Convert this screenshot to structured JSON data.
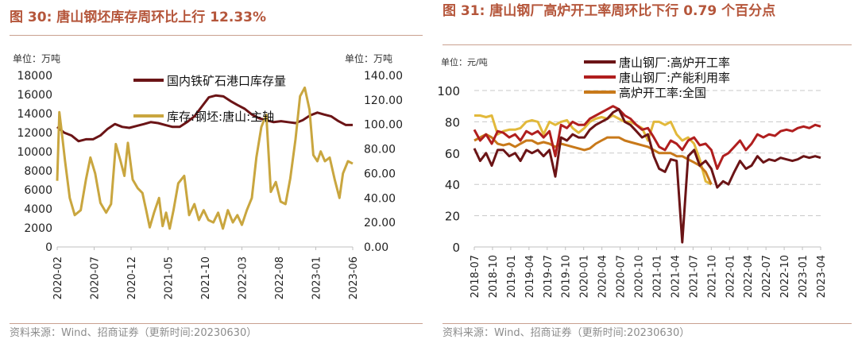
{
  "left": {
    "title": "图 30:  唐山钢坯库存周环比上行 12.33%",
    "source": "资料来源：Wind、招商证券（更新时间:20230630）",
    "chart_data": {
      "type": "line",
      "unit_left": "单位：万吨",
      "unit_right": "单位：万吨",
      "ylim_left": [
        0,
        18000
      ],
      "yticks_left": [
        "18000",
        "16000",
        "14000",
        "12000",
        "10000",
        "8000",
        "6000",
        "4000",
        "2000",
        "0"
      ],
      "ylim_right": [
        0,
        140
      ],
      "yticks_right": [
        "140.00",
        "120.00",
        "100.00",
        "80.00",
        "60.00",
        "40.00",
        "20.00",
        "0.00"
      ],
      "x_ticks": [
        "2020-02",
        "2020-07",
        "2020-12",
        "2021-05",
        "2021-10",
        "2022-03",
        "2022-08",
        "2023-01",
        "2023-06"
      ],
      "x_range": [
        "2020-02-01",
        "2023-06-30"
      ],
      "legend_placement": "top-right",
      "series": [
        {
          "name": "国内铁矿石港口库存量",
          "axis": "left",
          "color": "#6b1416",
          "dates": [
            "2020-02-01",
            "2020-03-01",
            "2020-04-01",
            "2020-05-01",
            "2020-06-01",
            "2020-07-01",
            "2020-08-01",
            "2020-09-01",
            "2020-10-01",
            "2020-11-01",
            "2020-12-01",
            "2021-01-01",
            "2021-02-01",
            "2021-03-01",
            "2021-04-01",
            "2021-05-01",
            "2021-06-01",
            "2021-07-01",
            "2021-08-01",
            "2021-09-01",
            "2021-10-01",
            "2021-11-01",
            "2021-12-01",
            "2022-01-01",
            "2022-02-01",
            "2022-03-01",
            "2022-04-01",
            "2022-05-01",
            "2022-06-01",
            "2022-07-01",
            "2022-08-01",
            "2022-09-01",
            "2022-10-01",
            "2022-11-01",
            "2022-12-01",
            "2023-01-01",
            "2023-02-01",
            "2023-03-01",
            "2023-04-01",
            "2023-05-01",
            "2023-06-01",
            "2023-06-30"
          ],
          "values": [
            12600,
            12000,
            11700,
            11100,
            11300,
            11300,
            11700,
            12400,
            12900,
            12600,
            12500,
            12700,
            12900,
            13100,
            13000,
            12800,
            12600,
            12600,
            13100,
            13700,
            14700,
            15700,
            15900,
            15800,
            15300,
            14900,
            14500,
            13900,
            13500,
            13300,
            13100,
            13200,
            13100,
            13000,
            13300,
            13800,
            14100,
            13900,
            13700,
            13200,
            12800,
            12800
          ]
        },
        {
          "name": "库存:钢坯:唐山:主轴",
          "axis": "right",
          "color": "#c9a63f",
          "dates": [
            "2020-02-01",
            "2020-02-10",
            "2020-02-20",
            "2020-03-05",
            "2020-03-25",
            "2020-04-15",
            "2020-05-10",
            "2020-06-01",
            "2020-06-20",
            "2020-07-10",
            "2020-08-01",
            "2020-08-25",
            "2020-09-15",
            "2020-10-05",
            "2020-10-25",
            "2020-11-10",
            "2020-11-25",
            "2020-12-15",
            "2021-01-05",
            "2021-01-25",
            "2021-02-10",
            "2021-02-25",
            "2021-03-15",
            "2021-04-05",
            "2021-04-20",
            "2021-05-05",
            "2021-05-20",
            "2021-06-05",
            "2021-06-25",
            "2021-07-20",
            "2021-08-10",
            "2021-09-01",
            "2021-09-20",
            "2021-10-10",
            "2021-10-30",
            "2021-11-20",
            "2021-12-10",
            "2021-12-30",
            "2022-01-20",
            "2022-02-10",
            "2022-03-01",
            "2022-03-20",
            "2022-04-10",
            "2022-05-01",
            "2022-05-20",
            "2022-06-10",
            "2022-07-01",
            "2022-07-20",
            "2022-08-10",
            "2022-08-30",
            "2022-09-20",
            "2022-10-10",
            "2022-11-01",
            "2022-11-20",
            "2022-12-10",
            "2022-12-30",
            "2023-01-15",
            "2023-02-01",
            "2023-02-15",
            "2023-03-05",
            "2023-03-25",
            "2023-04-15",
            "2023-05-05",
            "2023-05-20",
            "2023-06-10",
            "2023-06-30"
          ],
          "values": [
            54,
            110,
            94,
            70,
            40,
            26,
            30,
            55,
            73,
            60,
            36,
            28,
            35,
            84,
            70,
            58,
            85,
            55,
            48,
            44,
            30,
            16,
            28,
            40,
            17,
            28,
            15,
            30,
            52,
            58,
            26,
            35,
            22,
            30,
            22,
            20,
            28,
            15,
            30,
            20,
            26,
            18,
            30,
            40,
            73,
            98,
            108,
            45,
            53,
            37,
            35,
            56,
            88,
            123,
            130,
            112,
            75,
            70,
            78,
            70,
            73,
            55,
            40,
            60,
            70,
            68
          ]
        }
      ]
    }
  },
  "right": {
    "title": "图 31:  唐山钢厂高炉开工率周环比下行 0.79 个百分点",
    "source": "资料来源：Wind、招商证券（更新时间:20230630）",
    "chart_data": {
      "type": "line",
      "unit": "单位：元/吨",
      "ylim": [
        0,
        100
      ],
      "yticks": [
        "100",
        "80",
        "60",
        "40",
        "20",
        "0"
      ],
      "x_ticks": [
        "2018-07",
        "2018-10",
        "2019-01",
        "2019-04",
        "2019-07",
        "2019-10",
        "2020-01",
        "2020-04",
        "2020-07",
        "2020-10",
        "2021-01",
        "2021-04",
        "2021-07",
        "2021-10",
        "2022-01",
        "2022-04",
        "2022-07",
        "2022-10",
        "2023-01",
        "2023-04"
      ],
      "x_range": [
        "2018-07-01",
        "2023-06-30"
      ],
      "legend_placement": "top-left",
      "series": [
        {
          "name": "唐山钢厂:高炉开工率",
          "color": "#6b1416",
          "dates": [
            "2018-07-01",
            "2018-08-01",
            "2018-09-01",
            "2018-10-01",
            "2018-11-01",
            "2018-12-01",
            "2019-01-01",
            "2019-02-01",
            "2019-03-01",
            "2019-04-01",
            "2019-05-01",
            "2019-06-01",
            "2019-07-01",
            "2019-08-01",
            "2019-09-01",
            "2019-10-01",
            "2019-11-01",
            "2019-12-01",
            "2020-01-01",
            "2020-02-01",
            "2020-03-01",
            "2020-04-01",
            "2020-05-01",
            "2020-06-01",
            "2020-07-01",
            "2020-08-01",
            "2020-09-01",
            "2020-10-01",
            "2020-11-01",
            "2020-12-01",
            "2021-01-01",
            "2021-02-01",
            "2021-03-01",
            "2021-04-01",
            "2021-05-01",
            "2021-06-01",
            "2021-07-01",
            "2021-08-01",
            "2021-09-01",
            "2021-10-01",
            "2021-11-01",
            "2021-12-01",
            "2022-01-01",
            "2022-02-01",
            "2022-03-01",
            "2022-04-01",
            "2022-05-01",
            "2022-06-01",
            "2022-07-01",
            "2022-08-01",
            "2022-09-01",
            "2022-10-01",
            "2022-11-01",
            "2022-12-01",
            "2023-01-01",
            "2023-02-01",
            "2023-03-01",
            "2023-04-01",
            "2023-05-01",
            "2023-06-01",
            "2023-06-30"
          ],
          "values": [
            63,
            55,
            60,
            52,
            62,
            62,
            58,
            60,
            55,
            62,
            60,
            62,
            58,
            62,
            45,
            70,
            68,
            72,
            70,
            70,
            75,
            78,
            80,
            82,
            86,
            88,
            80,
            78,
            74,
            70,
            72,
            58,
            50,
            48,
            56,
            55,
            3,
            58,
            62,
            52,
            55,
            50,
            38,
            42,
            40,
            48,
            55,
            50,
            52,
            58,
            54,
            56,
            55,
            57,
            56,
            55,
            56,
            58,
            57,
            58,
            57
          ]
        },
        {
          "name": "唐山钢厂:产能利用率",
          "color": "#b01e1e",
          "dates": [
            "2018-07-01",
            "2018-08-01",
            "2018-09-01",
            "2018-10-01",
            "2018-11-01",
            "2018-12-01",
            "2019-01-01",
            "2019-02-01",
            "2019-03-01",
            "2019-04-01",
            "2019-05-01",
            "2019-06-01",
            "2019-07-01",
            "2019-08-01",
            "2019-09-01",
            "2019-10-01",
            "2019-11-01",
            "2019-12-01",
            "2020-01-01",
            "2020-02-01",
            "2020-03-01",
            "2020-04-01",
            "2020-05-01",
            "2020-06-01",
            "2020-07-01",
            "2020-08-01",
            "2020-09-01",
            "2020-10-01",
            "2020-11-01",
            "2020-12-01",
            "2021-01-01",
            "2021-02-01",
            "2021-03-01",
            "2021-04-01",
            "2021-05-01",
            "2021-06-01",
            "2021-07-01",
            "2021-08-01",
            "2021-09-01",
            "2021-10-01",
            "2021-11-01",
            "2021-12-01",
            "2022-01-01",
            "2022-02-01",
            "2022-03-01",
            "2022-04-01",
            "2022-05-01",
            "2022-06-01",
            "2022-07-01",
            "2022-08-01",
            "2022-09-01",
            "2022-10-01",
            "2022-11-01",
            "2022-12-01",
            "2023-01-01",
            "2023-02-01",
            "2023-03-01",
            "2023-04-01",
            "2023-05-01",
            "2023-06-01",
            "2023-06-30"
          ],
          "values": [
            75,
            68,
            72,
            66,
            74,
            73,
            70,
            72,
            68,
            74,
            72,
            74,
            70,
            74,
            58,
            78,
            76,
            80,
            78,
            78,
            82,
            84,
            86,
            88,
            90,
            88,
            84,
            82,
            78,
            75,
            76,
            70,
            64,
            62,
            68,
            66,
            62,
            68,
            70,
            65,
            66,
            62,
            50,
            58,
            60,
            64,
            68,
            62,
            66,
            72,
            70,
            72,
            71,
            74,
            75,
            74,
            76,
            77,
            76,
            78,
            77
          ]
        },
        {
          "name": "高炉开工率:全国",
          "color": "#c8791a",
          "dates": [
            "2018-07-01",
            "2018-08-01",
            "2018-09-01",
            "2018-10-01",
            "2018-11-01",
            "2018-12-01",
            "2019-01-01",
            "2019-02-01",
            "2019-03-01",
            "2019-04-01",
            "2019-05-01",
            "2019-06-01",
            "2019-07-01",
            "2019-08-01",
            "2019-09-01",
            "2019-10-01",
            "2019-11-01",
            "2019-12-01",
            "2020-01-01",
            "2020-02-01",
            "2020-03-01",
            "2020-04-01",
            "2020-05-01",
            "2020-06-01",
            "2020-07-01",
            "2020-08-01",
            "2020-09-01",
            "2020-10-01",
            "2020-11-01",
            "2020-12-01",
            "2021-01-01",
            "2021-02-01",
            "2021-03-01",
            "2021-04-01",
            "2021-05-01",
            "2021-06-01",
            "2021-07-01",
            "2021-08-01",
            "2021-09-01",
            "2021-10-01",
            "2021-11-01",
            "2021-12-01"
          ],
          "values": [
            68,
            70,
            72,
            70,
            66,
            65,
            66,
            64,
            66,
            68,
            68,
            66,
            67,
            66,
            64,
            66,
            65,
            64,
            63,
            62,
            63,
            66,
            68,
            70,
            70,
            70,
            68,
            67,
            66,
            65,
            64,
            62,
            60,
            60,
            60,
            58,
            58,
            56,
            54,
            52,
            48,
            40
          ]
        },
        {
          "name": "",
          "color": "#e2b93b",
          "dates": [
            "2018-07-01",
            "2018-08-01",
            "2018-09-01",
            "2018-10-01",
            "2018-11-01",
            "2018-12-01",
            "2019-01-01",
            "2019-02-01",
            "2019-03-01",
            "2019-04-01",
            "2019-05-01",
            "2019-06-01",
            "2019-07-01",
            "2019-08-01",
            "2019-09-01",
            "2019-10-01",
            "2019-11-01",
            "2019-12-01",
            "2020-01-01",
            "2020-02-01",
            "2020-03-01",
            "2020-04-01",
            "2020-05-01",
            "2020-06-01",
            "2020-07-01",
            "2020-08-01",
            "2020-09-01",
            "2020-10-01",
            "2020-11-01",
            "2020-12-01",
            "2021-01-01",
            "2021-02-01",
            "2021-03-01",
            "2021-04-01",
            "2021-05-01",
            "2021-06-01",
            "2021-07-01",
            "2021-08-01",
            "2021-09-01",
            "2021-10-01",
            "2021-11-01",
            "2021-12-01"
          ],
          "values": [
            84,
            84,
            83,
            84,
            72,
            74,
            75,
            75,
            76,
            80,
            81,
            80,
            72,
            80,
            78,
            80,
            81,
            76,
            73,
            76,
            80,
            82,
            83,
            82,
            84,
            82,
            80,
            80,
            78,
            76,
            68,
            80,
            80,
            78,
            80,
            72,
            68,
            70,
            66,
            56,
            42,
            40
          ]
        }
      ]
    }
  }
}
